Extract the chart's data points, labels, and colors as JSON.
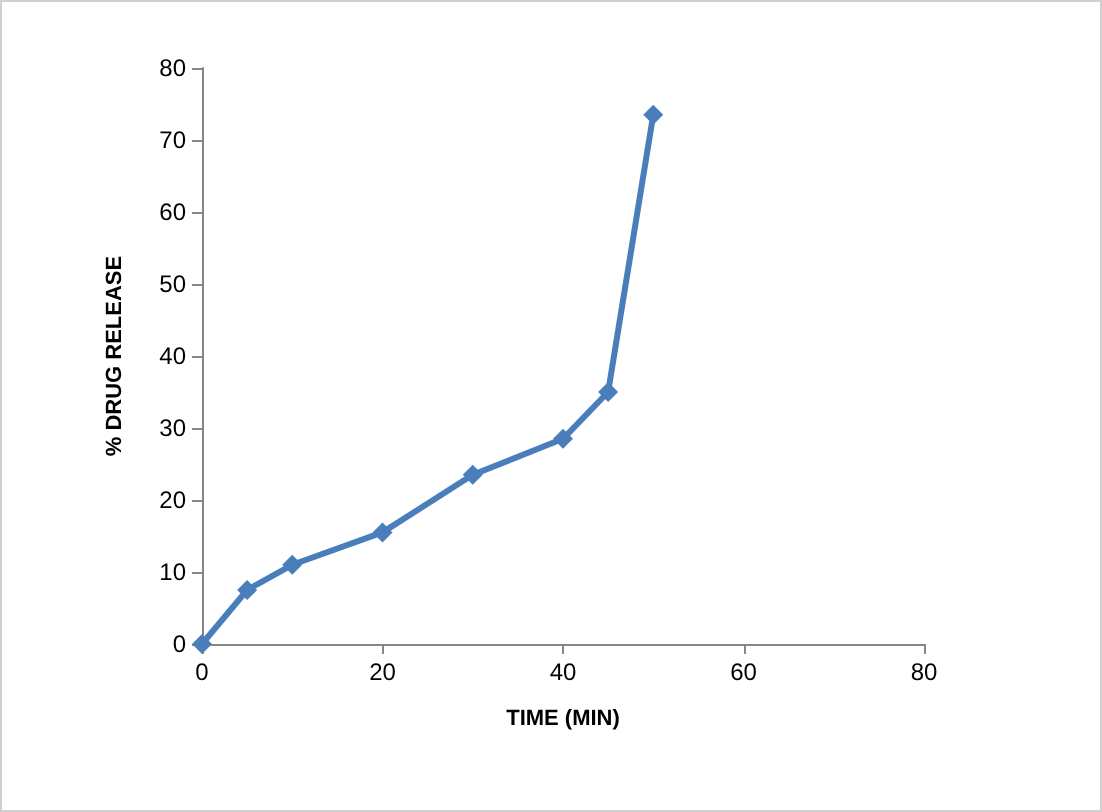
{
  "chart_data": {
    "type": "line",
    "xlabel": "TIME (MIN)",
    "ylabel": "% DRUG RELEASE",
    "x": [
      0,
      5,
      10,
      20,
      30,
      40,
      45,
      50
    ],
    "series": [
      {
        "color": "#4a7ebb",
        "values": [
          0,
          7.5,
          11,
          15.5,
          23.5,
          28.5,
          35,
          73.5
        ]
      }
    ],
    "xlim": [
      0,
      80
    ],
    "xticks": [
      0,
      20,
      40,
      60,
      80
    ],
    "ylim": [
      0,
      80
    ],
    "yticks": [
      0,
      10,
      20,
      30,
      40,
      50,
      60,
      70,
      80
    ],
    "grid": false,
    "marker": "diamond",
    "line_style": "solid"
  }
}
